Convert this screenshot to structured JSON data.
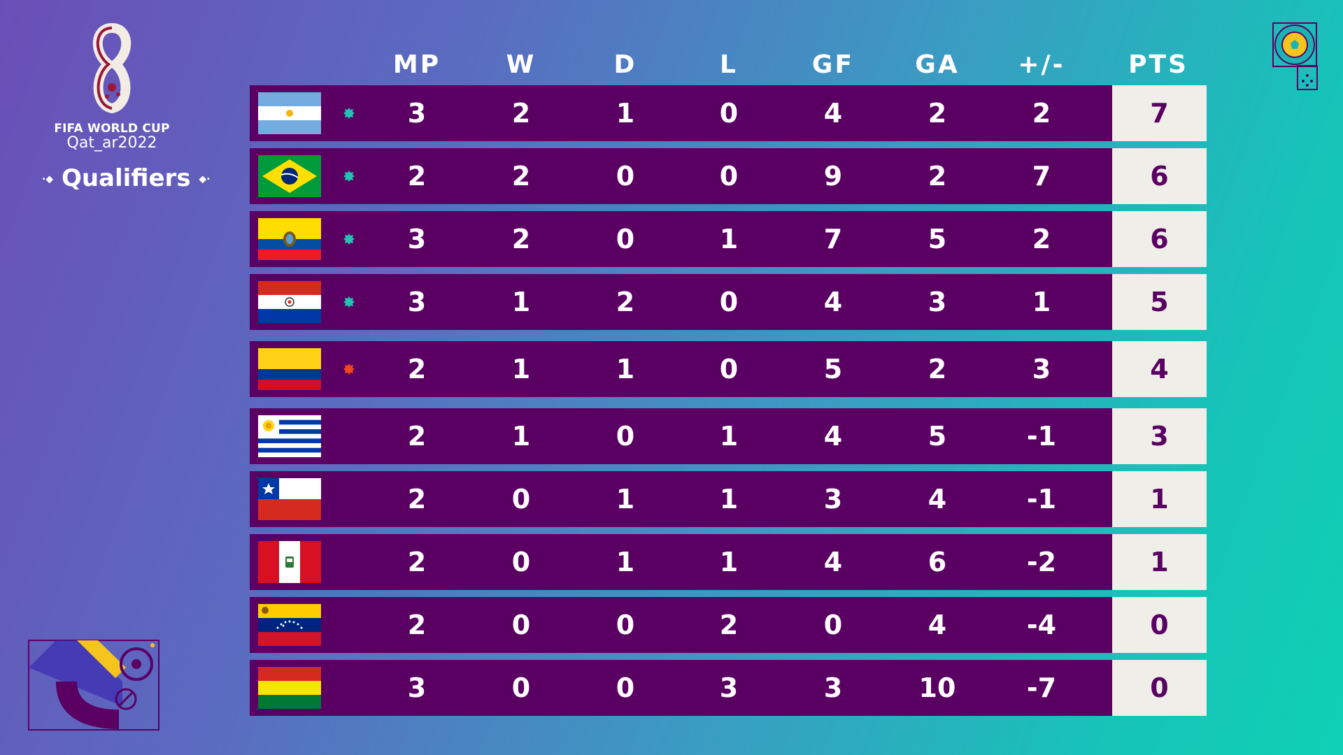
{
  "logo": {
    "line1": "FIFA WORLD CUP",
    "line2": "Qat_ar2022",
    "subtitle": "Qualifiers"
  },
  "columns": [
    "MP",
    "W",
    "D",
    "L",
    "GF",
    "GA",
    "+/-",
    "PTS"
  ],
  "colors": {
    "row_bg": "#5a0063",
    "pts_bg": "#efeee8",
    "qualified": "#22c3b2",
    "playoff": "#f0461e"
  },
  "rows": [
    {
      "team": "Argentina",
      "flag": "argentina-flag",
      "status": "qualified",
      "MP": "3",
      "W": "2",
      "D": "1",
      "L": "0",
      "GF": "4",
      "GA": "2",
      "GD": "2",
      "PTS": "7"
    },
    {
      "team": "Brazil",
      "flag": "brazil-flag",
      "status": "qualified",
      "MP": "2",
      "W": "2",
      "D": "0",
      "L": "0",
      "GF": "9",
      "GA": "2",
      "GD": "7",
      "PTS": "6"
    },
    {
      "team": "Ecuador",
      "flag": "ecuador-flag",
      "status": "qualified",
      "MP": "3",
      "W": "2",
      "D": "0",
      "L": "1",
      "GF": "7",
      "GA": "5",
      "GD": "2",
      "PTS": "6"
    },
    {
      "team": "Paraguay",
      "flag": "paraguay-flag",
      "status": "qualified",
      "MP": "3",
      "W": "1",
      "D": "2",
      "L": "0",
      "GF": "4",
      "GA": "3",
      "GD": "1",
      "PTS": "5"
    },
    {
      "team": "Colombia",
      "flag": "colombia-flag",
      "status": "playoff",
      "MP": "2",
      "W": "1",
      "D": "1",
      "L": "0",
      "GF": "5",
      "GA": "2",
      "GD": "3",
      "PTS": "4"
    },
    {
      "team": "Uruguay",
      "flag": "uruguay-flag",
      "status": "none",
      "MP": "2",
      "W": "1",
      "D": "0",
      "L": "1",
      "GF": "4",
      "GA": "5",
      "GD": "-1",
      "PTS": "3"
    },
    {
      "team": "Chile",
      "flag": "chile-flag",
      "status": "none",
      "MP": "2",
      "W": "0",
      "D": "1",
      "L": "1",
      "GF": "3",
      "GA": "4",
      "GD": "-1",
      "PTS": "1"
    },
    {
      "team": "Peru",
      "flag": "peru-flag",
      "status": "none",
      "MP": "2",
      "W": "0",
      "D": "1",
      "L": "1",
      "GF": "4",
      "GA": "6",
      "GD": "-2",
      "PTS": "1"
    },
    {
      "team": "Venezuela",
      "flag": "venezuela-flag",
      "status": "none",
      "MP": "2",
      "W": "0",
      "D": "0",
      "L": "2",
      "GF": "0",
      "GA": "4",
      "GD": "-4",
      "PTS": "0"
    },
    {
      "team": "Bolivia",
      "flag": "bolivia-flag",
      "status": "none",
      "MP": "3",
      "W": "0",
      "D": "0",
      "L": "3",
      "GF": "3",
      "GA": "10",
      "GD": "-7",
      "PTS": "0"
    }
  ]
}
